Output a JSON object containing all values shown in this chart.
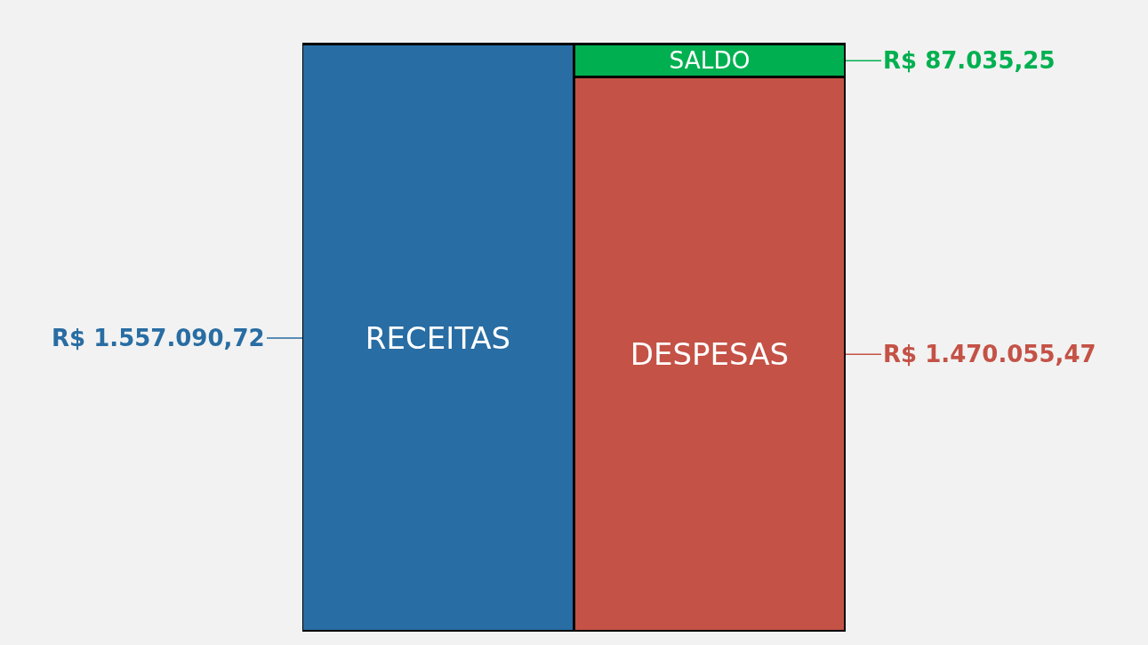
{
  "chart_data": {
    "type": "bar",
    "stacked": true,
    "categories": [
      null,
      null
    ],
    "series": [
      {
        "name": "RECEITAS",
        "color": "#286da3",
        "values": [
          1557090.72,
          null
        ],
        "value_labels": [
          "R$ 1.557.090,72",
          null
        ]
      },
      {
        "name": "DESPESAS",
        "color": "#c45246",
        "values": [
          null,
          1470055.47
        ],
        "value_labels": [
          null,
          "R$ 1.470.055,47"
        ]
      },
      {
        "name": "SALDO",
        "color": "#00b050",
        "values": [
          null,
          87035.25
        ],
        "value_labels": [
          null,
          "R$ 87.035,25"
        ]
      }
    ]
  }
}
